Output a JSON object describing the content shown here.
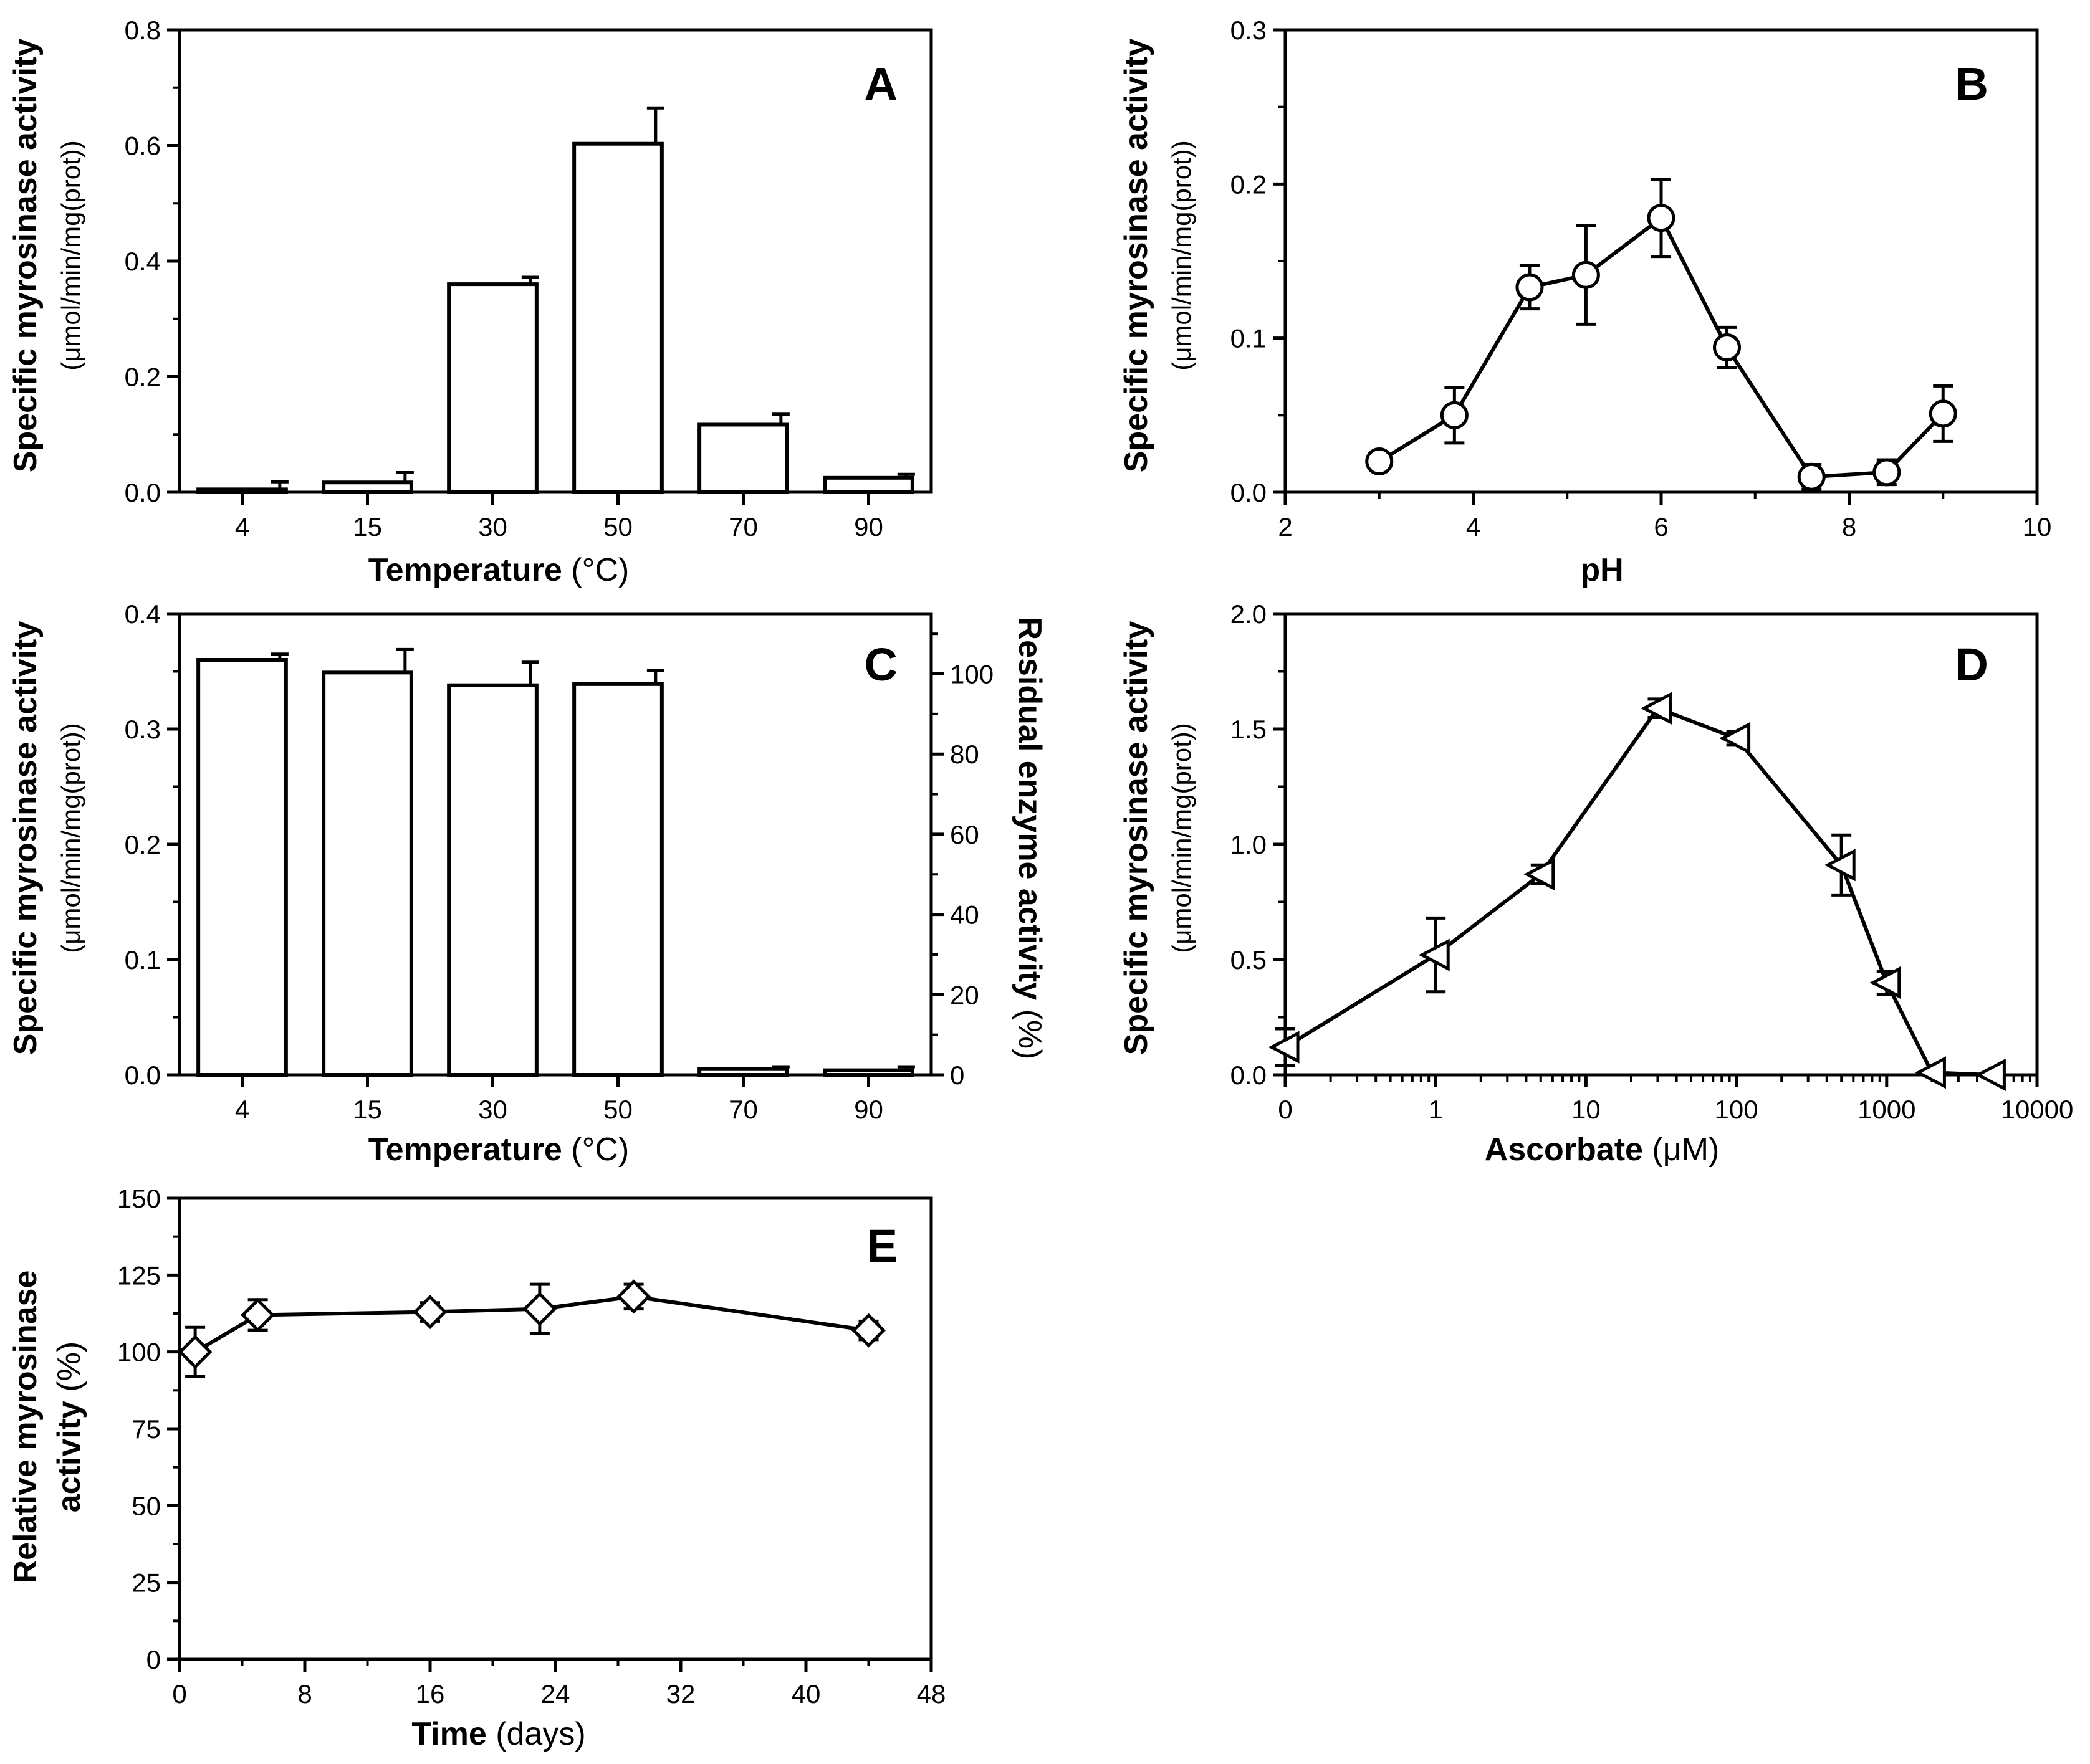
{
  "chart_data": [
    {
      "panel": "A",
      "type": "bar",
      "title": "",
      "categories": [
        "4",
        "15",
        "30",
        "50",
        "70",
        "90"
      ],
      "values": [
        0.005,
        0.017,
        0.36,
        0.603,
        0.117,
        0.025
      ],
      "errors": [
        0.013,
        0.017,
        0.012,
        0.062,
        0.018,
        0.006
      ],
      "xlabel": {
        "bold": "Temperature",
        "normal": " (°C)"
      },
      "ylabel": {
        "line1": "Specific myrosinase activity",
        "line2": "(μmol/min/mg(prot))"
      },
      "ylim": [
        0,
        0.8
      ],
      "yticks": [
        "0.0",
        "0.2",
        "0.4",
        "0.6",
        "0.8"
      ]
    },
    {
      "panel": "B",
      "type": "line",
      "marker": "circle",
      "title": "",
      "x": [
        3,
        3.8,
        4.6,
        5.2,
        6,
        6.7,
        7.6,
        8.4,
        9
      ],
      "y": [
        0.02,
        0.05,
        0.133,
        0.141,
        0.178,
        0.094,
        0.01,
        0.013,
        0.051
      ],
      "errors": [
        0.0,
        0.018,
        0.014,
        0.032,
        0.025,
        0.013,
        0.008,
        0.008,
        0.018
      ],
      "xlabel": {
        "bold": "pH",
        "normal": ""
      },
      "ylabel": {
        "line1": "Specific myrosinase activity",
        "line2": "(μmol/min/mg(prot))"
      },
      "xlim": [
        2,
        10
      ],
      "ylim": [
        0,
        0.3
      ],
      "xticks": [
        "2",
        "4",
        "6",
        "8",
        "10"
      ],
      "yticks": [
        "0.0",
        "0.1",
        "0.2",
        "0.3"
      ]
    },
    {
      "panel": "C",
      "type": "bar",
      "title": "",
      "categories": [
        "4",
        "15",
        "30",
        "50",
        "70",
        "90"
      ],
      "values": [
        0.36,
        0.349,
        0.338,
        0.339,
        0.005,
        0.004
      ],
      "errors": [
        0.005,
        0.02,
        0.02,
        0.012,
        0.002,
        0.003
      ],
      "xlabel": {
        "bold": "Temperature",
        "normal": " (°C)"
      },
      "ylabel": {
        "line1": "Specific myrosinase activity",
        "line2": "(μmol/min/mg(prot))"
      },
      "ylabel_right": {
        "bold": "Residual enzyme activity",
        "normal": " (%)"
      },
      "ylim": [
        0,
        0.4
      ],
      "ylim_right": [
        0,
        115
      ],
      "yticks": [
        "0.0",
        "0.1",
        "0.2",
        "0.3",
        "0.4"
      ],
      "yticks_right": [
        "0",
        "20",
        "40",
        "60",
        "80",
        "100"
      ]
    },
    {
      "panel": "D",
      "type": "line",
      "marker": "left-triangle",
      "xscale": "log",
      "title": "",
      "x": [
        0.1,
        1,
        5,
        30,
        100,
        500,
        1000,
        2000,
        5000
      ],
      "y": [
        0.12,
        0.52,
        0.87,
        1.59,
        1.46,
        0.91,
        0.4,
        0.01,
        0.0
      ],
      "errors": [
        0.08,
        0.16,
        0.04,
        0.04,
        0.03,
        0.13,
        0.05,
        0.0,
        0.0
      ],
      "xlabel": {
        "bold": "Ascorbate",
        "normal": " (μM)"
      },
      "ylabel": {
        "line1": "Specific myrosinase activity",
        "line2": "(μmol/min/mg(prot))"
      },
      "xlim": [
        0.1,
        10000
      ],
      "ylim": [
        0,
        2.0
      ],
      "xticks": [
        "0",
        "1",
        "10",
        "100",
        "1000",
        "10000"
      ],
      "yticks": [
        "0.0",
        "0.5",
        "1.0",
        "1.5",
        "2.0"
      ]
    },
    {
      "panel": "E",
      "type": "line",
      "marker": "diamond",
      "title": "",
      "x": [
        1,
        5,
        16,
        23,
        29,
        44
      ],
      "y": [
        100,
        112,
        113,
        114,
        118,
        107
      ],
      "errors": [
        8,
        5,
        3,
        8,
        4,
        3
      ],
      "xlabel": {
        "bold": "Time",
        "normal": " (days)"
      },
      "ylabel": {
        "line1": "Relative myrosinase",
        "line2": "activity",
        "unit": " (%)"
      },
      "xlim": [
        0,
        48
      ],
      "ylim": [
        0,
        150
      ],
      "xticks": [
        "0",
        "8",
        "16",
        "24",
        "32",
        "40",
        "48"
      ],
      "yticks": [
        "0",
        "25",
        "50",
        "75",
        "100",
        "125",
        "150"
      ]
    }
  ]
}
